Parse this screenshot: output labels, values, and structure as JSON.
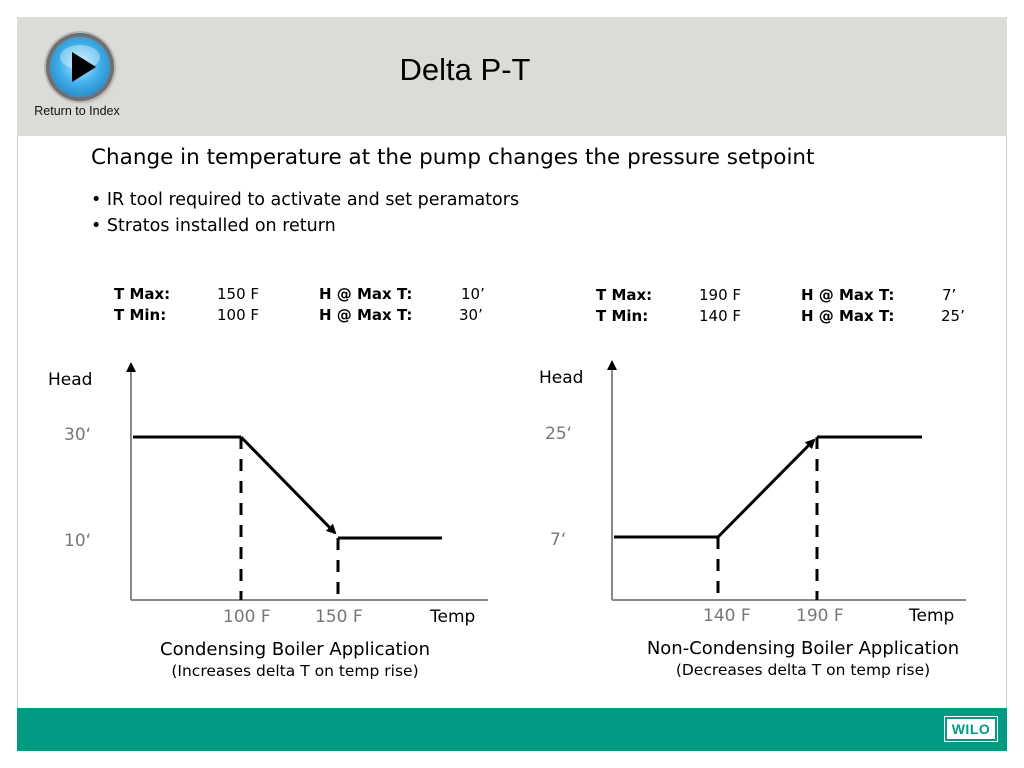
{
  "nav": {
    "return_label": "Return to Index"
  },
  "title": "Delta P-T",
  "subtitle": "Change in temperature at the pump changes the pressure setpoint",
  "bullets": [
    "• IR tool required to activate and set peramators",
    "• Stratos installed on return"
  ],
  "left": {
    "params": {
      "tmax_label": "T Max:",
      "tmax_value": "150 F",
      "tmin_label": "T Min:",
      "tmin_value": "100 F",
      "h1_label": "H @ Max T:",
      "h1_value": "10’",
      "h2_label": "H @ Max T:",
      "h2_value": "30’"
    },
    "y_axis_label": "Head",
    "x_axis_label": "Temp",
    "high_head": "30‘",
    "low_head": "10‘",
    "t_low": "100 F",
    "t_high": "150 F",
    "caption": "Condensing Boiler Application",
    "sub_caption": "(Increases delta T on temp rise)"
  },
  "right": {
    "params": {
      "tmax_label": "T Max:",
      "tmax_value": "190 F",
      "tmin_label": "T Min:",
      "tmin_value": "140 F",
      "h1_label": "H @ Max T:",
      "h1_value": "7’",
      "h2_label": "H @ Max T:",
      "h2_value": "25’"
    },
    "y_axis_label": "Head",
    "x_axis_label": "Temp",
    "high_head": "25‘",
    "low_head": "7‘",
    "t_low": "140 F",
    "t_high": "190 F",
    "caption": "Non-Condensing Boiler Application",
    "sub_caption": "(Decreases delta T on temp rise)"
  },
  "footer": {
    "logo_text": "WILO"
  },
  "colors": {
    "header": "#dcdbd7",
    "footer": "#009b82",
    "tick_label": "#777777"
  }
}
